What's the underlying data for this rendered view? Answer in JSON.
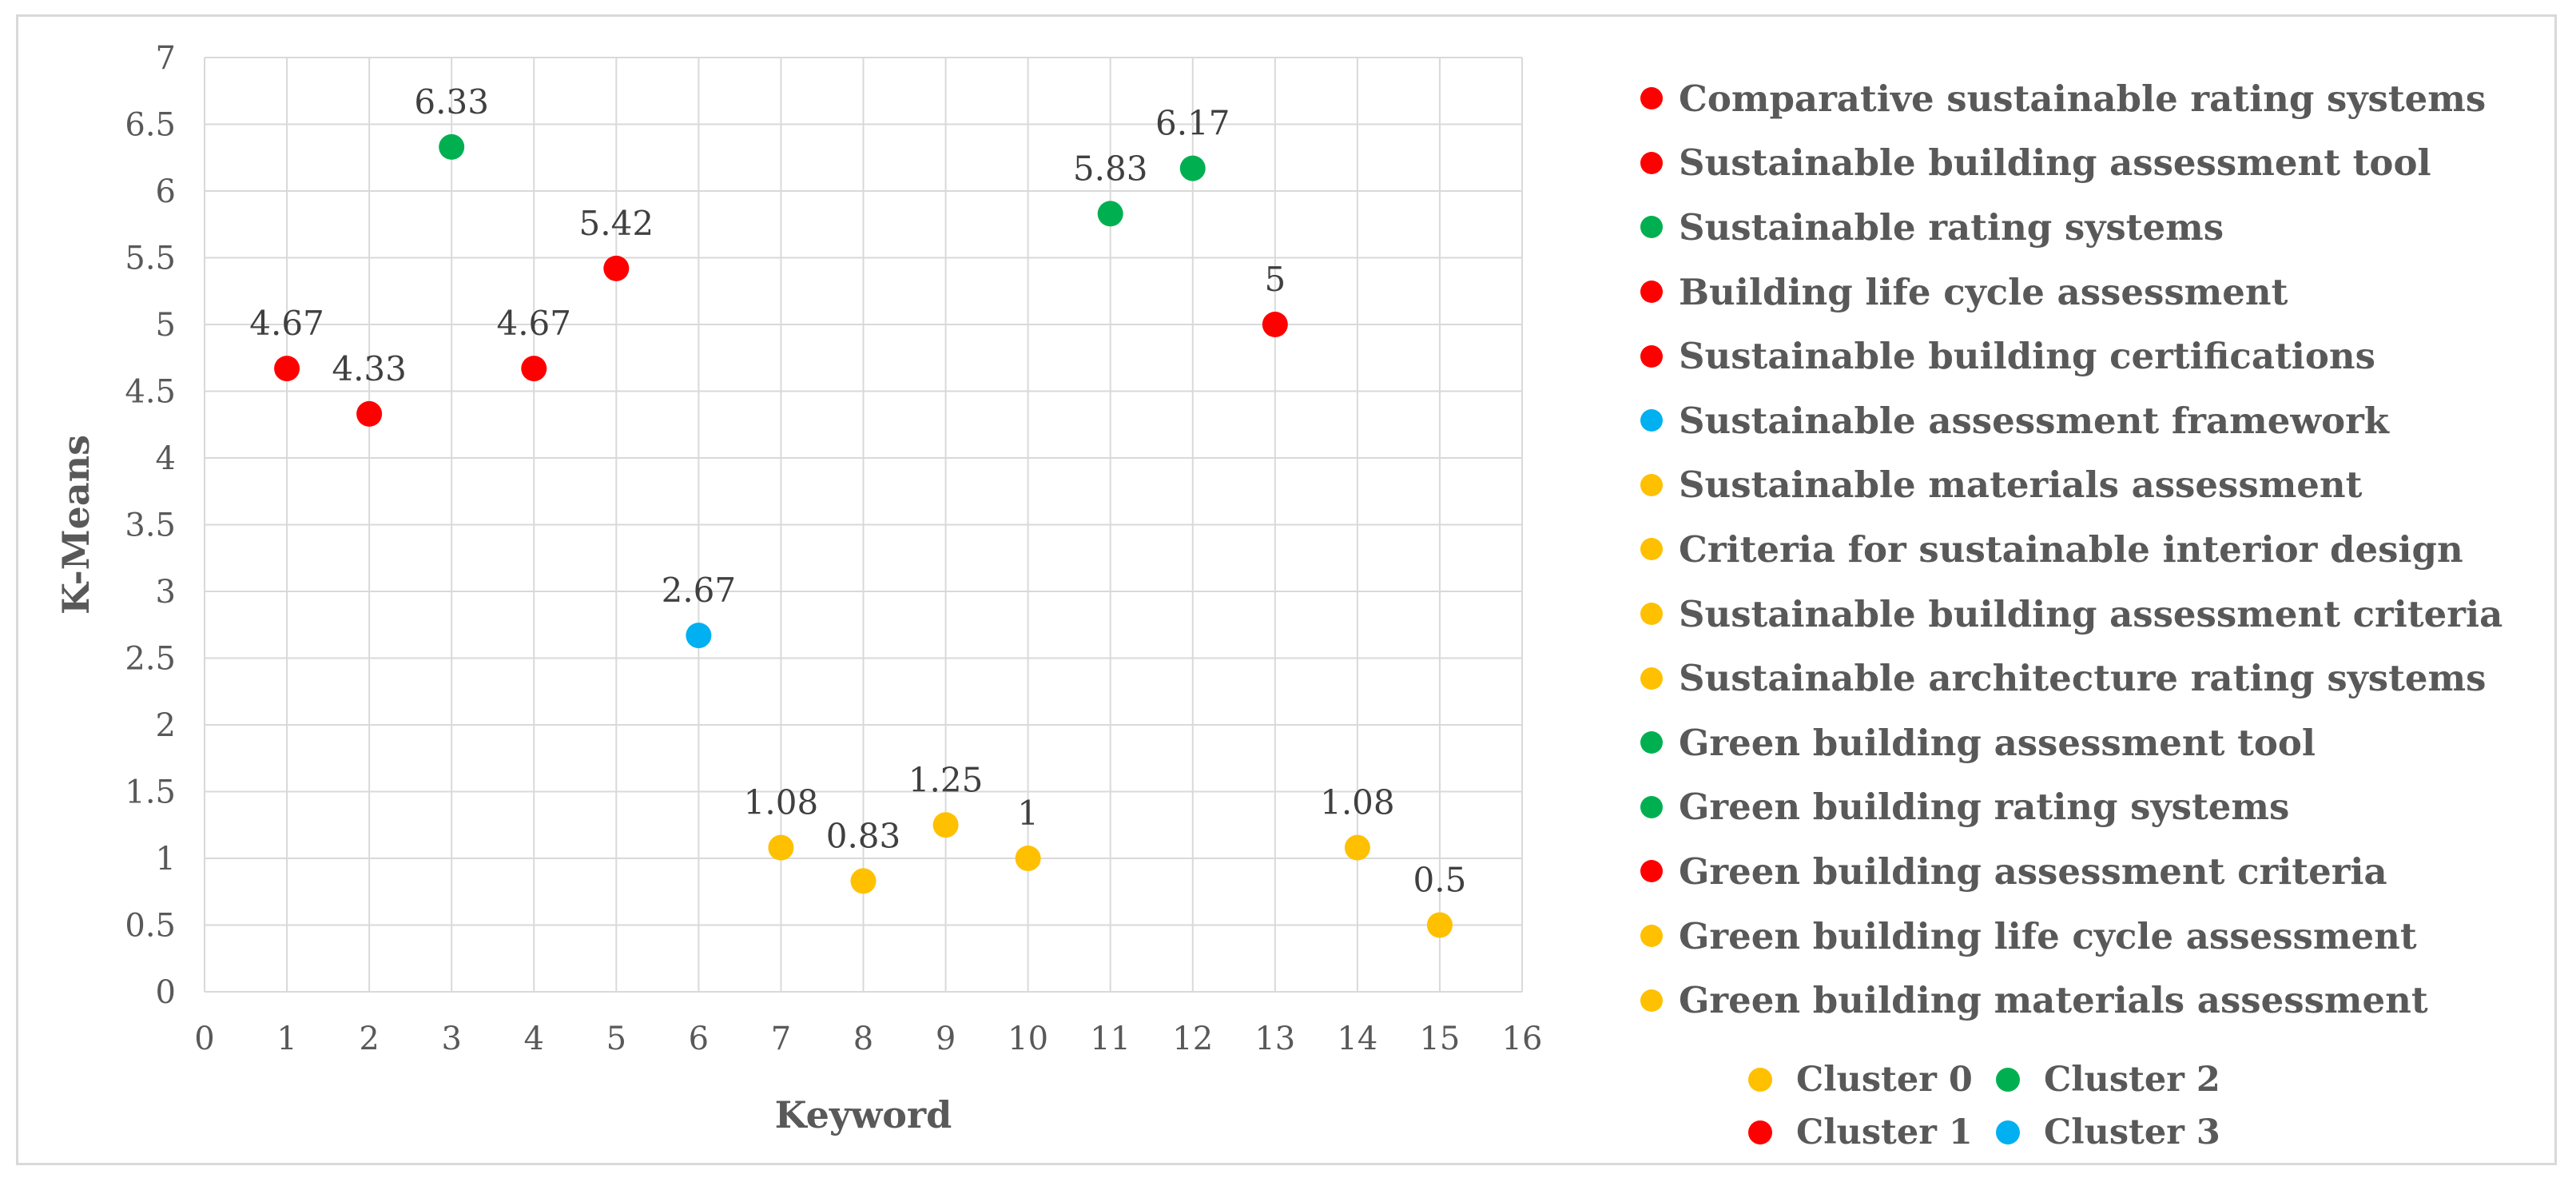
{
  "chart_data": {
    "type": "scatter",
    "xlabel": "Keyword",
    "ylabel": "K-Means",
    "xlim": [
      0,
      16
    ],
    "ylim": [
      0,
      7
    ],
    "x_ticks": [
      "0",
      "1",
      "2",
      "3",
      "4",
      "5",
      "6",
      "7",
      "8",
      "9",
      "10",
      "11",
      "12",
      "13",
      "14",
      "15",
      "16"
    ],
    "y_ticks": [
      "0",
      "0.5",
      "1",
      "1.5",
      "2",
      "2.5",
      "3",
      "3.5",
      "4",
      "4.5",
      "5",
      "5.5",
      "6",
      "6.5",
      "7"
    ],
    "grid": true,
    "points": [
      {
        "x": 1,
        "y": 4.67,
        "label": "4.67",
        "cluster": 1
      },
      {
        "x": 2,
        "y": 4.33,
        "label": "4.33",
        "cluster": 1
      },
      {
        "x": 3,
        "y": 6.33,
        "label": "6.33",
        "cluster": 2
      },
      {
        "x": 4,
        "y": 4.67,
        "label": "4.67",
        "cluster": 1
      },
      {
        "x": 5,
        "y": 5.42,
        "label": "5.42",
        "cluster": 1
      },
      {
        "x": 6,
        "y": 2.67,
        "label": "2.67",
        "cluster": 3
      },
      {
        "x": 7,
        "y": 1.08,
        "label": "1.08",
        "cluster": 0
      },
      {
        "x": 8,
        "y": 0.83,
        "label": "0.83",
        "cluster": 0
      },
      {
        "x": 9,
        "y": 1.25,
        "label": "1.25",
        "cluster": 0
      },
      {
        "x": 10,
        "y": 1,
        "label": "1",
        "cluster": 0
      },
      {
        "x": 11,
        "y": 5.83,
        "label": "5.83",
        "cluster": 2
      },
      {
        "x": 12,
        "y": 6.17,
        "label": "6.17",
        "cluster": 2
      },
      {
        "x": 13,
        "y": 5,
        "label": "5",
        "cluster": 1
      },
      {
        "x": 14,
        "y": 1.08,
        "label": "1.08",
        "cluster": 0
      },
      {
        "x": 15,
        "y": 0.5,
        "label": "0.5",
        "cluster": 0
      }
    ],
    "keywords": [
      {
        "label": "Comparative sustainable rating systems",
        "cluster": 1
      },
      {
        "label": "Sustainable building assessment tool",
        "cluster": 1
      },
      {
        "label": "Sustainable rating systems",
        "cluster": 2
      },
      {
        "label": "Building life cycle assessment",
        "cluster": 1
      },
      {
        "label": "Sustainable building certifications",
        "cluster": 1
      },
      {
        "label": "Sustainable assessment framework",
        "cluster": 3
      },
      {
        "label": "Sustainable materials assessment",
        "cluster": 0
      },
      {
        "label": "Criteria for sustainable interior design",
        "cluster": 0
      },
      {
        "label": "Sustainable building assessment criteria",
        "cluster": 0
      },
      {
        "label": "Sustainable architecture rating systems",
        "cluster": 0
      },
      {
        "label": "Green building assessment tool",
        "cluster": 2
      },
      {
        "label": "Green building rating systems",
        "cluster": 2
      },
      {
        "label": "Green building assessment criteria",
        "cluster": 1
      },
      {
        "label": "Green building life cycle assessment",
        "cluster": 0
      },
      {
        "label": "Green building materials assessment",
        "cluster": 0
      }
    ],
    "clusters": [
      {
        "id": 0,
        "name": "Cluster 0",
        "color": "#ffc000"
      },
      {
        "id": 2,
        "name": "Cluster 2",
        "color": "#00b050"
      },
      {
        "id": 1,
        "name": "Cluster 1",
        "color": "#ff0000"
      },
      {
        "id": 3,
        "name": "Cluster 3",
        "color": "#00b0f0"
      }
    ]
  }
}
